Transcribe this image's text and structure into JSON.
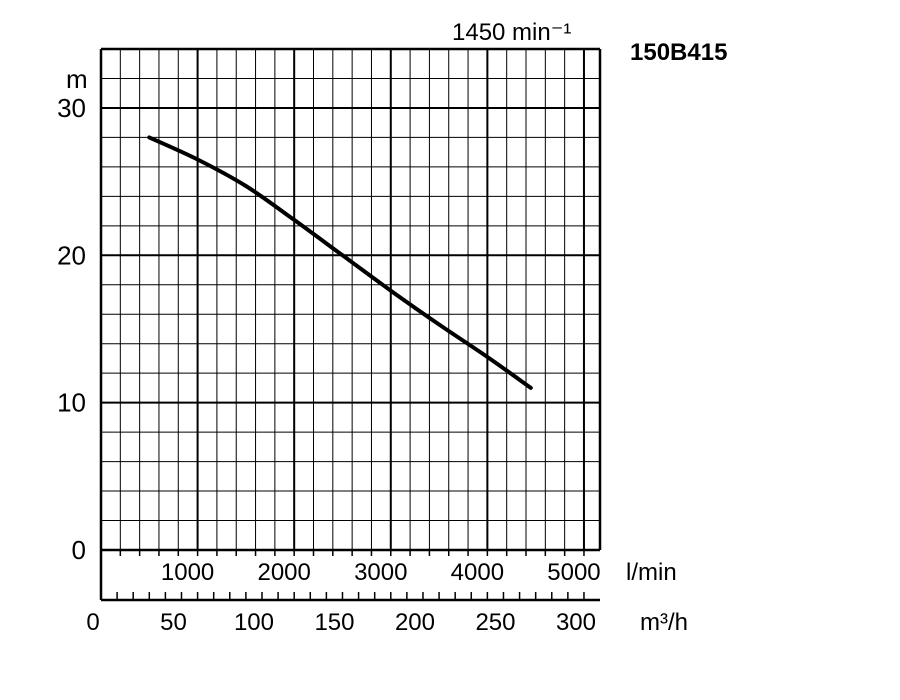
{
  "chart_data": {
    "type": "line",
    "model": "150B415",
    "speed_label": "1450 min⁻¹",
    "ylabel": "m",
    "ylim": [
      0,
      34
    ],
    "y_ticks": [
      "0",
      "10",
      "20",
      "30"
    ],
    "x_lmin_unit": "l/min",
    "x_lmin_ticks": [
      "1000",
      "2000",
      "3000",
      "4000",
      "5000"
    ],
    "x_m3h_unit": "m³/h",
    "x_m3h_ticks": [
      "0",
      "50",
      "100",
      "150",
      "200",
      "250",
      "300"
    ],
    "xlim_lmin": [
      0,
      5166
    ],
    "grid": true,
    "series": [
      {
        "x": [
          500,
          1000,
          1500,
          2000,
          2500,
          3000,
          3500,
          4000,
          4450
        ],
        "y": [
          28,
          26.5,
          24.7,
          22.4,
          20,
          17.6,
          15.3,
          13.1,
          11
        ]
      }
    ],
    "colors": {
      "line": "#000000",
      "grid": "#000000"
    }
  }
}
